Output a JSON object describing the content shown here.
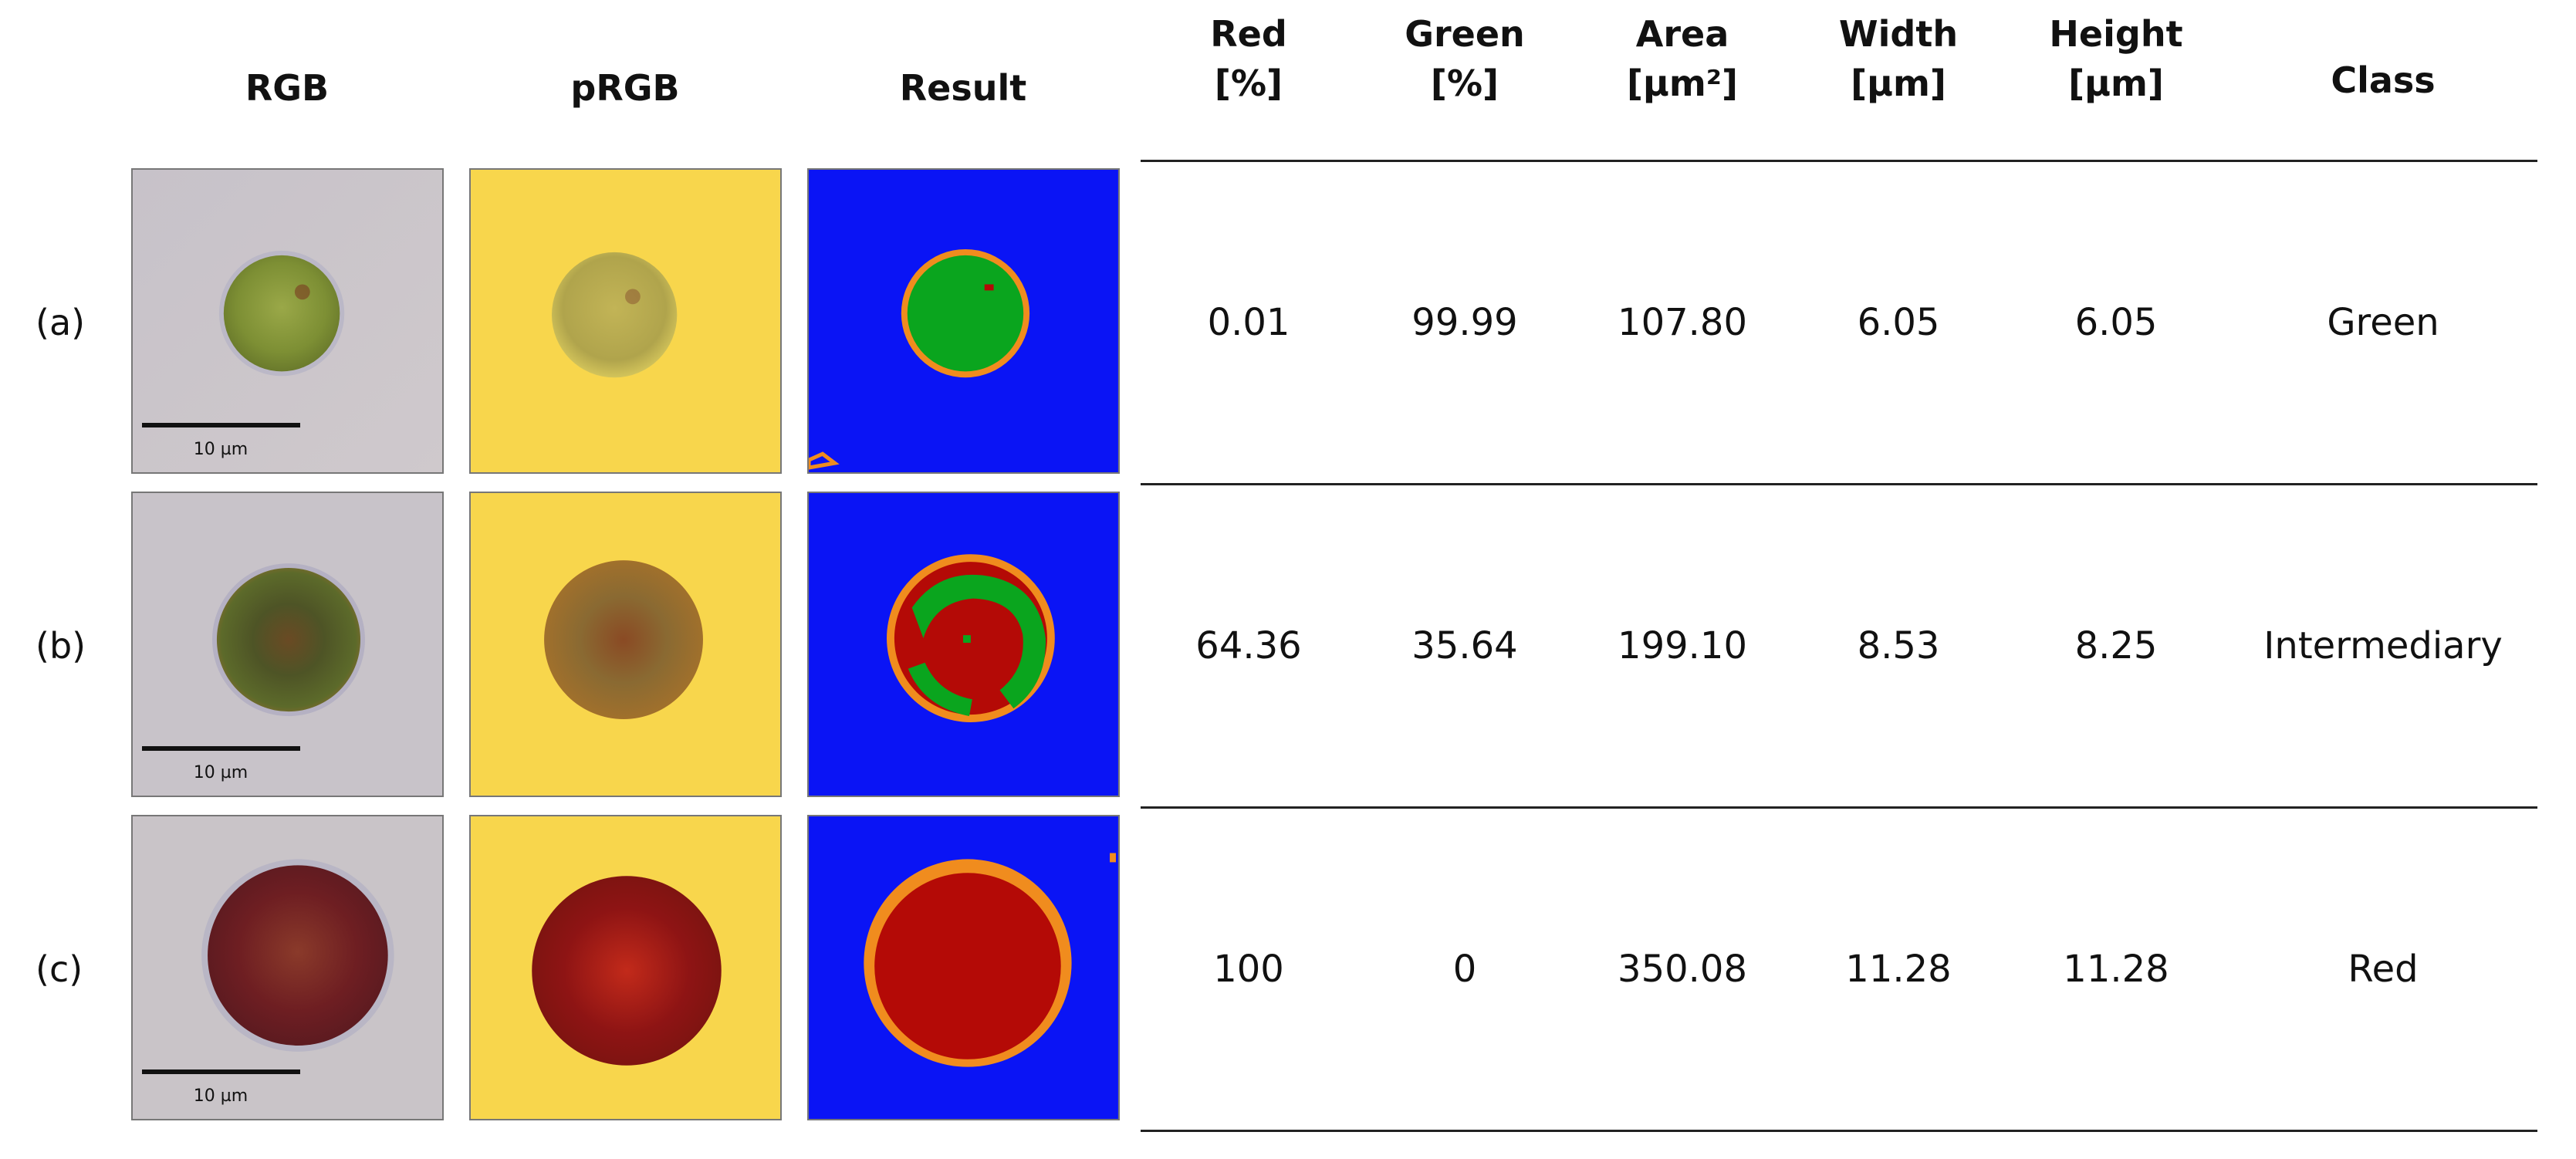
{
  "headers": [
    {
      "key": "rgb",
      "line1": "RGB",
      "line2": ""
    },
    {
      "key": "prgb",
      "line1": "pRGB",
      "line2": ""
    },
    {
      "key": "result",
      "line1": "Result",
      "line2": ""
    },
    {
      "key": "red",
      "line1": "Red",
      "line2": "[%]"
    },
    {
      "key": "green",
      "line1": "Green",
      "line2": "[%]"
    },
    {
      "key": "area",
      "line1": "Area",
      "line2": "[µm²]"
    },
    {
      "key": "width",
      "line1": "Width",
      "line2": "[µm]"
    },
    {
      "key": "height",
      "line1": "Height",
      "line2": "[µm]"
    },
    {
      "key": "class",
      "line1": "Class",
      "line2": ""
    }
  ],
  "scale_label": "10 µm",
  "rows": [
    {
      "label": "(a)",
      "red": "0.01",
      "green": "99.99",
      "area": "107.80",
      "width": "6.05",
      "height": "6.05",
      "class": "Green"
    },
    {
      "label": "(b)",
      "red": "64.36",
      "green": "35.64",
      "area": "199.10",
      "width": "8.53",
      "height": "8.25",
      "class": "Intermediary"
    },
    {
      "label": "(c)",
      "red": "100",
      "green": "0",
      "area": "350.08",
      "width": "11.28",
      "height": "11.28",
      "class": "Red"
    }
  ],
  "colors": {
    "rgb_background": "#c9c3c8",
    "prgb_background": "#f7d54a",
    "result_background": "#0a14f5",
    "result_green": "#0aa51e",
    "result_red": "#b40a06",
    "result_border": "#f08c1e",
    "cell_green": "#8a9a3c",
    "cell_intermediary": "#5e5a2c",
    "cell_red": "#7a1c1c"
  },
  "icons": [
    "microscope-rgb-image",
    "pseudo-rgb-image",
    "segmentation-result-image"
  ]
}
